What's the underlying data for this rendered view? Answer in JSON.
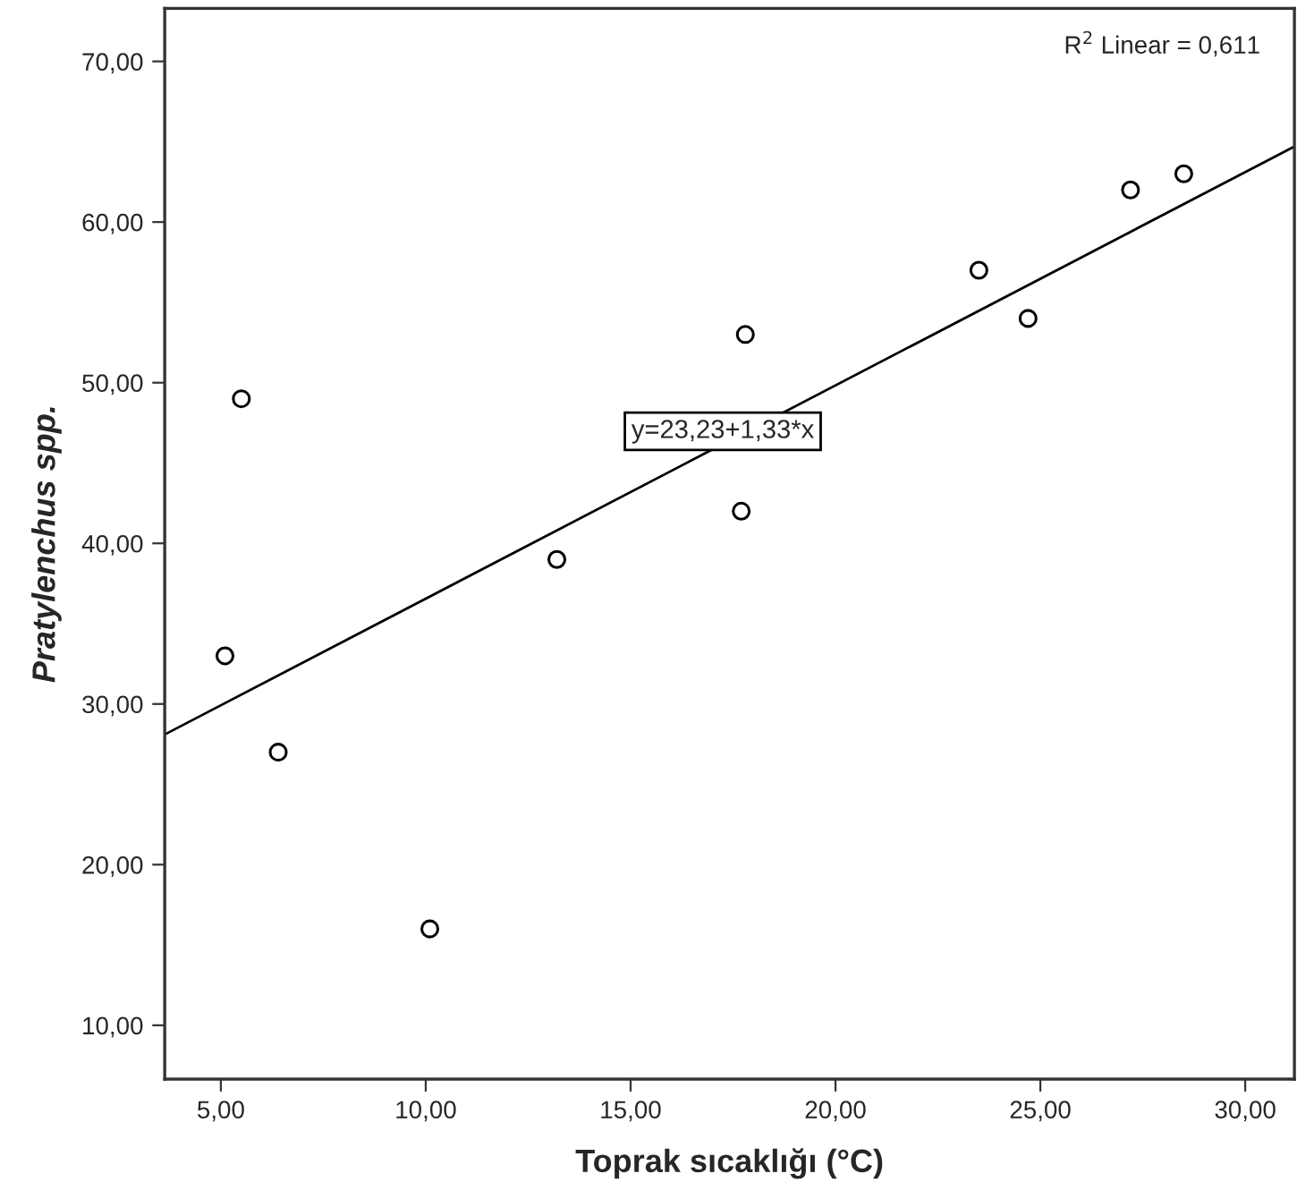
{
  "chart_data": {
    "type": "scatter",
    "xlabel": "Toprak sıcaklığı (°C)",
    "ylabel": "Pratylenchus spp.",
    "x": [
      5.1,
      5.5,
      6.4,
      10.1,
      13.2,
      17.7,
      17.8,
      23.5,
      24.7,
      27.2,
      28.5
    ],
    "series": [
      {
        "color": "#000000",
        "values": [
          33,
          49,
          27,
          16,
          39,
          42,
          53,
          57,
          54,
          62,
          63
        ],
        "marker": "circle"
      },
      {
        "type": "line",
        "color": "#000000",
        "x": [
          3.63,
          31.2
        ],
        "values": [
          28.1,
          64.7
        ],
        "marker": "none"
      }
    ],
    "annotations": [
      "R$^{2}$ Linear = 0,611",
      "y=23,23+1,33*x"
    ],
    "xlim": [
      3.63,
      31.2
    ],
    "ylim": [
      6.65,
      73.3
    ],
    "xticks": [
      {
        "value": 5,
        "label": "5,00"
      },
      {
        "value": 10,
        "label": "10,00"
      },
      {
        "value": 15,
        "label": "15,00"
      },
      {
        "value": 20,
        "label": "20,00"
      },
      {
        "value": 25,
        "label": "25,00"
      },
      {
        "value": 30,
        "label": "30,00"
      }
    ],
    "yticks": [
      {
        "value": 10,
        "label": "10,00"
      },
      {
        "value": 20,
        "label": "20,00"
      },
      {
        "value": 30,
        "label": "30,00"
      },
      {
        "value": 40,
        "label": "40,00"
      },
      {
        "value": 50,
        "label": "50,00"
      },
      {
        "value": 60,
        "label": "60,00"
      },
      {
        "value": 70,
        "label": "70,00"
      }
    ],
    "grid": false,
    "legend": false
  }
}
